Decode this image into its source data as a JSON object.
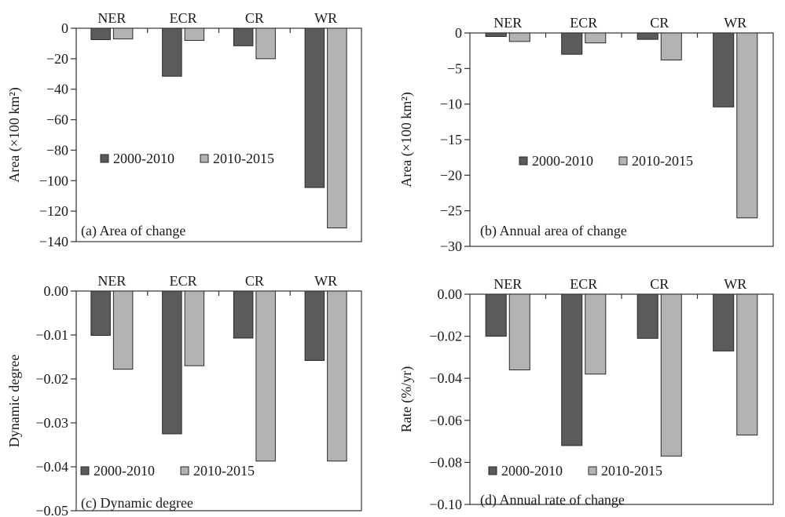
{
  "chart_data": [
    {
      "type": "bar",
      "title": "(a) Area of change",
      "xlabel": "",
      "ylabel": "Area (×100 km²)",
      "categories": [
        "NER",
        "ECR",
        "CR",
        "WR"
      ],
      "series": [
        {
          "name": "2000-2010",
          "color": "#5b5a5c",
          "values": [
            -7.5,
            -31.5,
            -11.5,
            -104.5
          ]
        },
        {
          "name": "2010-2015",
          "color": "#b3b3b5",
          "values": [
            -7.0,
            -8.0,
            -20.0,
            -131.0
          ]
        }
      ],
      "ylim": [
        -140,
        0
      ],
      "yticks": [
        0,
        -20,
        -40,
        -60,
        -80,
        -100,
        -120,
        -140
      ],
      "ytick_labels": [
        "0",
        "−20",
        "−40",
        "−60",
        "−80",
        "−100",
        "−120",
        "−140"
      ],
      "legend_position": "center-left",
      "grid": false
    },
    {
      "type": "bar",
      "title": "(b) Annual area of change",
      "xlabel": "",
      "ylabel": "Area (×100 km²)",
      "categories": [
        "NER",
        "ECR",
        "CR",
        "WR"
      ],
      "series": [
        {
          "name": "2000-2010",
          "color": "#5b5a5c",
          "values": [
            -0.5,
            -3.0,
            -0.9,
            -10.4
          ]
        },
        {
          "name": "2010-2015",
          "color": "#b3b3b5",
          "values": [
            -1.2,
            -1.4,
            -3.8,
            -26.0
          ]
        }
      ],
      "ylim": [
        -30,
        0
      ],
      "yticks": [
        0,
        -5,
        -10,
        -15,
        -20,
        -25,
        -30
      ],
      "ytick_labels": [
        "0",
        "−5",
        "−10",
        "−15",
        "−20",
        "−25",
        "−30"
      ],
      "legend_position": "center-right",
      "grid": false
    },
    {
      "type": "bar",
      "title": "(c) Dynamic degree",
      "xlabel": "",
      "ylabel": "Dynamic degree",
      "categories": [
        "NER",
        "ECR",
        "CR",
        "WR"
      ],
      "series": [
        {
          "name": "2000-2010",
          "color": "#5b5a5c",
          "values": [
            -0.0101,
            -0.0325,
            -0.0107,
            -0.0158
          ]
        },
        {
          "name": "2010-2015",
          "color": "#b3b3b5",
          "values": [
            -0.0178,
            -0.017,
            -0.0387,
            -0.0387
          ]
        }
      ],
      "ylim": [
        -0.05,
        0
      ],
      "yticks": [
        0,
        -0.01,
        -0.02,
        -0.03,
        -0.04,
        -0.05
      ],
      "ytick_labels": [
        "0.00",
        "−0.01",
        "−0.02",
        "−0.03",
        "−0.04",
        "−0.05"
      ],
      "legend_position": "bottom-left",
      "grid": false
    },
    {
      "type": "bar",
      "title": "(d) Annual rate of change",
      "xlabel": "",
      "ylabel": "Rate (%/yr)",
      "categories": [
        "NER",
        "ECR",
        "CR",
        "WR"
      ],
      "series": [
        {
          "name": "2000-2010",
          "color": "#5b5a5c",
          "values": [
            -0.02,
            -0.072,
            -0.021,
            -0.027
          ]
        },
        {
          "name": "2010-2015",
          "color": "#b3b3b5",
          "values": [
            -0.036,
            -0.038,
            -0.077,
            -0.067
          ]
        }
      ],
      "ylim": [
        -0.1,
        0
      ],
      "yticks": [
        0,
        -0.02,
        -0.04,
        -0.06,
        -0.08,
        -0.1
      ],
      "ytick_labels": [
        "0.00",
        "−0.02",
        "−0.04",
        "−0.06",
        "−0.08",
        "−0.10"
      ],
      "legend_position": "bottom-left",
      "grid": false
    }
  ]
}
